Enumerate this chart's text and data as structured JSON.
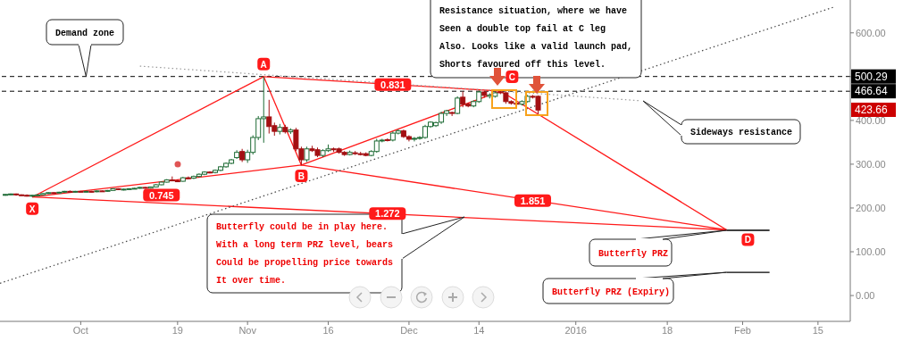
{
  "chart_data": {
    "type": "candlestick",
    "xlim": [
      "2015-09-16",
      "2016-02-21"
    ],
    "ylim": [
      -59,
      675
    ],
    "xticks": [
      {
        "value": "2015-10-01",
        "label": "Oct"
      },
      {
        "value": "2015-10-19",
        "label": "19"
      },
      {
        "value": "2015-11-01",
        "label": "Nov"
      },
      {
        "value": "2015-11-16",
        "label": "16"
      },
      {
        "value": "2015-12-01",
        "label": "Dec"
      },
      {
        "value": "2015-12-14",
        "label": "14"
      },
      {
        "value": "2016-01-01",
        "label": "2016"
      },
      {
        "value": "2016-01-18",
        "label": "18"
      },
      {
        "value": "2016-02-01",
        "label": "Feb"
      },
      {
        "value": "2016-02-15",
        "label": "15"
      }
    ],
    "yticks": [
      {
        "value": 0,
        "label": "0.00"
      },
      {
        "value": 100,
        "label": "100.00"
      },
      {
        "value": 200,
        "label": "200.00"
      },
      {
        "value": 300,
        "label": "300.00"
      },
      {
        "value": 400,
        "label": "400.00"
      },
      {
        "value": 500,
        "label": null
      },
      {
        "value": 600,
        "label": "600.00"
      }
    ],
    "series": [
      {
        "type": "candlestick",
        "color": "#1e6b35",
        "x": [
          "2015-09-17",
          "2015-09-18",
          "2015-09-22",
          "2015-09-23",
          "2015-09-24",
          "2015-09-25",
          "2015-09-27",
          "2015-09-28",
          "2015-09-30",
          "2015-10-02",
          "2015-10-04",
          "2015-10-06",
          "2015-10-07",
          "2015-10-09",
          "2015-10-10",
          "2015-10-11",
          "2015-10-12",
          "2015-10-14",
          "2015-10-15",
          "2015-10-16",
          "2015-10-17",
          "2015-10-20",
          "2015-10-22",
          "2015-10-23",
          "2015-10-24",
          "2015-10-26",
          "2015-10-27",
          "2015-10-28",
          "2015-10-29",
          "2015-10-30",
          "2015-11-01",
          "2015-11-02",
          "2015-11-03",
          "2015-11-04",
          "2015-11-07",
          "2015-11-09",
          "2015-11-12",
          "2015-11-15",
          "2015-11-16",
          "2015-11-20",
          "2015-11-24",
          "2015-11-25",
          "2015-11-26",
          "2015-11-28",
          "2015-11-29",
          "2015-12-02",
          "2015-12-03",
          "2015-12-04",
          "2015-12-05",
          "2015-12-06",
          "2015-12-07",
          "2015-12-08",
          "2015-12-10",
          "2015-12-13",
          "2015-12-14",
          "2015-12-16",
          "2015-12-17",
          "2015-12-22",
          "2015-12-23"
        ],
        "ohlc": [
          [
            230,
            232,
            228,
            231
          ],
          [
            231,
            233,
            229,
            232
          ],
          [
            227,
            230,
            225,
            229
          ],
          [
            229,
            231,
            227,
            230
          ],
          [
            230,
            234,
            229,
            233
          ],
          [
            233,
            236,
            232,
            235
          ],
          [
            234,
            237,
            233,
            236
          ],
          [
            236,
            239,
            235,
            238
          ],
          [
            237,
            239,
            235,
            238
          ],
          [
            237,
            239,
            236,
            238
          ],
          [
            237,
            240,
            236,
            239
          ],
          [
            238,
            241,
            237,
            240
          ],
          [
            240,
            245,
            239,
            244
          ],
          [
            242,
            244,
            240,
            243
          ],
          [
            243,
            245,
            242,
            244
          ],
          [
            244,
            246,
            243,
            245
          ],
          [
            245,
            248,
            244,
            247
          ],
          [
            245,
            249,
            244,
            248
          ],
          [
            248,
            255,
            247,
            253
          ],
          [
            253,
            261,
            252,
            259
          ],
          [
            259,
            266,
            258,
            264
          ],
          [
            261,
            271,
            260,
            269
          ],
          [
            268,
            274,
            266,
            272
          ],
          [
            272,
            279,
            270,
            277
          ],
          [
            277,
            284,
            275,
            282
          ],
          [
            281,
            288,
            279,
            286
          ],
          [
            286,
            296,
            284,
            294
          ],
          [
            294,
            304,
            292,
            302
          ],
          [
            302,
            312,
            300,
            310
          ],
          [
            315,
            332,
            312,
            327
          ],
          [
            310,
            333,
            303,
            327
          ],
          [
            327,
            366,
            322,
            361
          ],
          [
            361,
            410,
            355,
            404
          ],
          [
            404,
            500,
            349,
            408
          ],
          [
            375,
            392,
            368,
            384
          ],
          [
            374,
            382,
            369,
            378
          ],
          [
            310,
            340,
            305,
            335
          ],
          [
            320,
            334,
            316,
            331
          ],
          [
            331,
            345,
            328,
            335
          ],
          [
            322,
            331,
            320,
            327
          ],
          [
            320,
            332,
            318,
            329
          ],
          [
            329,
            358,
            326,
            353
          ],
          [
            353,
            358,
            350,
            355
          ],
          [
            355,
            375,
            352,
            371
          ],
          [
            371,
            380,
            368,
            376
          ],
          [
            357,
            362,
            352,
            359
          ],
          [
            359,
            364,
            356,
            361
          ],
          [
            361,
            390,
            358,
            386
          ],
          [
            386,
            398,
            383,
            396
          ],
          [
            388,
            397,
            385,
            395
          ],
          [
            396,
            420,
            392,
            416
          ],
          [
            416,
            424,
            410,
            422
          ],
          [
            416,
            455,
            414,
            451
          ],
          [
            433,
            446,
            430,
            443
          ],
          [
            443,
            468,
            440,
            465
          ],
          [
            455,
            462,
            450,
            458
          ],
          [
            455,
            466,
            452,
            463
          ],
          [
            437,
            446,
            434,
            443
          ],
          [
            443,
            458,
            441,
            455
          ]
        ]
      },
      {
        "type": "candlestick",
        "color": "#a30f12",
        "x": [
          "2015-09-19",
          "2015-09-20",
          "2015-09-21",
          "2015-09-26",
          "2015-09-29",
          "2015-10-01",
          "2015-10-03",
          "2015-10-05",
          "2015-10-08",
          "2015-10-13",
          "2015-10-18",
          "2015-10-19",
          "2015-10-21",
          "2015-10-25",
          "2015-10-31",
          "2015-11-05",
          "2015-11-06",
          "2015-11-08",
          "2015-11-10",
          "2015-11-11",
          "2015-11-13",
          "2015-11-14",
          "2015-11-17",
          "2015-11-18",
          "2015-11-19",
          "2015-11-21",
          "2015-11-22",
          "2015-11-23",
          "2015-11-27",
          "2015-11-30",
          "2015-12-01",
          "2015-12-09",
          "2015-12-11",
          "2015-12-12",
          "2015-12-15",
          "2015-12-18",
          "2015-12-19",
          "2015-12-20",
          "2015-12-21",
          "2015-12-24",
          "2015-12-25"
        ],
        "ohlc": [
          [
            232,
            233,
            228,
            230
          ],
          [
            230,
            231,
            228,
            229
          ],
          [
            229,
            231,
            226,
            227
          ],
          [
            235,
            236,
            232,
            234
          ],
          [
            238,
            240,
            236,
            237
          ],
          [
            238,
            239,
            236,
            237
          ],
          [
            238,
            239,
            236,
            237
          ],
          [
            239,
            240,
            237,
            238
          ],
          [
            244,
            245,
            241,
            242
          ],
          [
            247,
            248,
            244,
            245
          ],
          [
            264,
            272,
            261,
            262
          ],
          [
            262,
            265,
            259,
            261
          ],
          [
            269,
            272,
            266,
            268
          ],
          [
            282,
            284,
            279,
            281
          ],
          [
            329,
            335,
            305,
            310
          ],
          [
            408,
            447,
            370,
            386
          ],
          [
            388,
            395,
            365,
            375
          ],
          [
            384,
            390,
            370,
            374
          ],
          [
            378,
            383,
            330,
            335
          ],
          [
            335,
            340,
            298,
            310
          ],
          [
            335,
            342,
            328,
            331
          ],
          [
            333,
            338,
            316,
            320
          ],
          [
            335,
            338,
            328,
            333
          ],
          [
            335,
            338,
            324,
            327
          ],
          [
            327,
            330,
            319,
            322
          ],
          [
            326,
            330,
            321,
            324
          ],
          [
            324,
            328,
            320,
            323
          ],
          [
            324,
            327,
            318,
            320
          ],
          [
            356,
            359,
            352,
            355
          ],
          [
            376,
            379,
            360,
            363
          ],
          [
            363,
            366,
            352,
            357
          ],
          [
            418,
            420,
            410,
            416
          ],
          [
            453,
            466,
            430,
            437
          ],
          [
            437,
            440,
            430,
            433
          ],
          [
            465,
            467,
            452,
            457
          ],
          [
            465,
            467,
            460,
            463
          ],
          [
            463,
            466,
            438,
            443
          ],
          [
            443,
            446,
            436,
            439
          ],
          [
            439,
            442,
            434,
            437
          ],
          [
            455,
            458,
            450,
            453
          ],
          [
            455,
            457,
            415,
            423.66
          ]
        ]
      },
      {
        "type": "line",
        "color": "#ff1a1a",
        "x": [
          "2015-09-22",
          "2015-11-04",
          "2015-11-11",
          "2015-12-18",
          "2016-01-29"
        ],
        "values": [
          225,
          500,
          298,
          467,
          150
        ]
      },
      {
        "type": "line",
        "color": "#ff1a1a",
        "x": [
          "2015-09-22",
          "2015-11-11",
          "2016-01-29"
        ],
        "values": [
          225,
          298,
          150
        ]
      },
      {
        "type": "line",
        "color": "#ff1a1a",
        "x": [
          "2015-11-04",
          "2015-12-18"
        ],
        "values": [
          500,
          467
        ]
      },
      {
        "type": "line",
        "color": "#ff1a1a",
        "x": [
          "2015-09-22",
          "2016-01-29"
        ],
        "values": [
          225,
          150
        ]
      },
      {
        "type": "line",
        "color": "#444444",
        "line_style": "dotted",
        "x": [
          "2015-09-16",
          "2016-02-18"
        ],
        "values": [
          28,
          659
        ]
      },
      {
        "type": "line",
        "color": "#999999",
        "line_style": "dotted",
        "x": [
          "2015-10-12",
          "2016-01-13"
        ],
        "values": [
          524,
          445
        ]
      },
      {
        "type": "line",
        "color": "#000000",
        "x": [
          "2016-01-29",
          "2016-02-06"
        ],
        "values": [
          149,
          149
        ]
      },
      {
        "type": "line",
        "color": "#000000",
        "x": [
          "2016-01-29",
          "2016-02-06"
        ],
        "values": [
          53,
          53
        ]
      }
    ],
    "ref_lines": [
      {
        "axis": "y",
        "value": 500.29,
        "label": "500.29",
        "color": "#000000",
        "line_style": "dashed"
      },
      {
        "axis": "y",
        "value": 466.64,
        "label": "466.64",
        "color": "#000000",
        "line_style": "dashed"
      }
    ],
    "annotations": [
      {
        "text": "Demand zone",
        "x": "2015-10-02",
        "y": 500.29
      },
      "Resistance situation, where we have\nSeen a double top fail at C leg\nAlso. Looks like a valid launch pad,\nShorts favoured off this level.",
      "Sideways resistance",
      "Butterfly could be in play here.\nWith a long term PRZ level, bears\nCould be propelling price towards\nIt over time.",
      {
        "text": "Butterfly PRZ",
        "x": "2016-01-29",
        "y": 149
      },
      {
        "text": "Butterfly PRZ (Expiry)",
        "x": "2016-01-29",
        "y": 53
      },
      {
        "text": "X",
        "x": "2015-09-22",
        "y": 225
      },
      {
        "text": "A",
        "x": "2015-11-04",
        "y": 500
      },
      {
        "text": "B",
        "x": "2015-11-11",
        "y": 298
      },
      {
        "text": "C",
        "x": "2015-12-18",
        "y": 467
      },
      {
        "text": "D",
        "x": "2016-01-29",
        "y": 150
      },
      {
        "text": "0.745",
        "x": "2015-10-16",
        "y": 260
      },
      {
        "text": "0.831",
        "x": "2015-11-28",
        "y": 482
      },
      {
        "text": "1.272",
        "x": "2015-11-27",
        "y": 187
      },
      {
        "text": "1.851",
        "x": "2015-12-24",
        "y": 217
      },
      "423.66"
    ]
  }
}
